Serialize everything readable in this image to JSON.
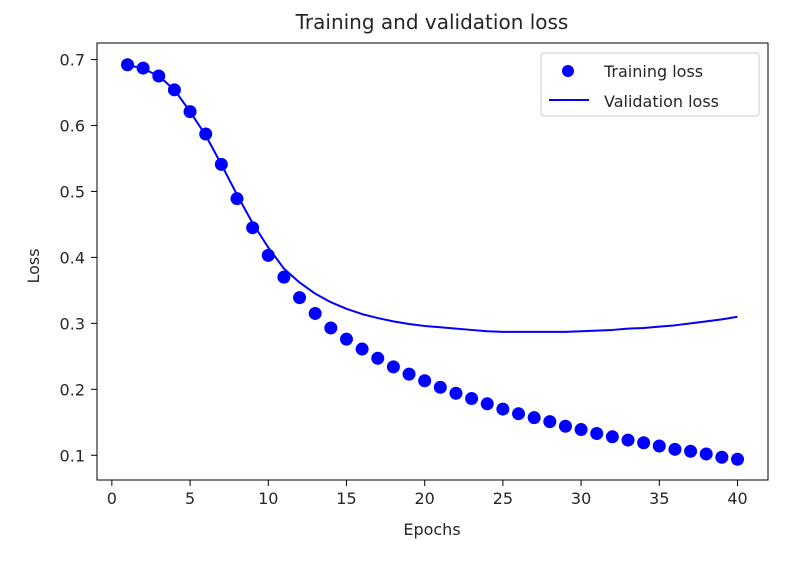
{
  "chart_data": {
    "type": "line",
    "title": "Training and validation loss",
    "xlabel": "Epochs",
    "ylabel": "Loss",
    "xlim": [
      -0.95,
      41.95
    ],
    "ylim": [
      0.0625,
      0.725
    ],
    "xticks": [
      0,
      5,
      10,
      15,
      20,
      25,
      30,
      35,
      40
    ],
    "xtick_labels": [
      "0",
      "5",
      "10",
      "15",
      "20",
      "25",
      "30",
      "35",
      "40"
    ],
    "yticks": [
      0.1,
      0.2,
      0.3,
      0.4,
      0.5,
      0.6,
      0.7
    ],
    "ytick_labels": [
      "0.1",
      "0.2",
      "0.3",
      "0.4",
      "0.5",
      "0.6",
      "0.7"
    ],
    "grid": false,
    "legend_position": "top-right",
    "x": [
      1,
      2,
      3,
      4,
      5,
      6,
      7,
      8,
      9,
      10,
      11,
      12,
      13,
      14,
      15,
      16,
      17,
      18,
      19,
      20,
      21,
      22,
      23,
      24,
      25,
      26,
      27,
      28,
      29,
      30,
      31,
      32,
      33,
      34,
      35,
      36,
      37,
      38,
      39,
      40
    ],
    "series": [
      {
        "name": "Training loss",
        "style": "scatter",
        "color": "#0000ff",
        "values": [
          0.692,
          0.687,
          0.675,
          0.654,
          0.621,
          0.587,
          0.541,
          0.489,
          0.445,
          0.403,
          0.37,
          0.339,
          0.315,
          0.293,
          0.276,
          0.261,
          0.247,
          0.234,
          0.223,
          0.213,
          0.203,
          0.194,
          0.186,
          0.178,
          0.17,
          0.163,
          0.157,
          0.151,
          0.144,
          0.139,
          0.133,
          0.128,
          0.123,
          0.119,
          0.114,
          0.109,
          0.106,
          0.102,
          0.097,
          0.094
        ]
      },
      {
        "name": "Validation loss",
        "style": "line",
        "color": "#0000ff",
        "values": [
          0.692,
          0.686,
          0.675,
          0.654,
          0.621,
          0.585,
          0.541,
          0.495,
          0.452,
          0.415,
          0.383,
          0.362,
          0.345,
          0.332,
          0.322,
          0.314,
          0.308,
          0.303,
          0.299,
          0.296,
          0.294,
          0.292,
          0.29,
          0.288,
          0.287,
          0.287,
          0.287,
          0.287,
          0.287,
          0.288,
          0.289,
          0.29,
          0.292,
          0.293,
          0.295,
          0.297,
          0.3,
          0.303,
          0.306,
          0.31
        ]
      }
    ]
  }
}
